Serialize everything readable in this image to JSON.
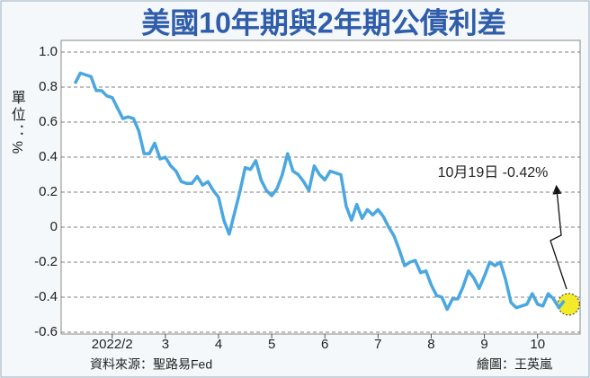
{
  "chart_data": {
    "type": "line",
    "title": "美國10年期與2年期公債利差",
    "y_label": "單位：%",
    "annotation": "10月19日  -0.42%",
    "source": "資料來源：聖路易Fed",
    "credit": "繪圖：王英嵐",
    "x": [
      1.3,
      1.4,
      1.5,
      1.6,
      1.7,
      1.8,
      1.9,
      2.0,
      2.1,
      2.2,
      2.3,
      2.4,
      2.5,
      2.6,
      2.7,
      2.8,
      2.9,
      3.0,
      3.1,
      3.2,
      3.3,
      3.4,
      3.5,
      3.6,
      3.7,
      3.8,
      3.9,
      4.0,
      4.1,
      4.2,
      4.3,
      4.4,
      4.5,
      4.6,
      4.7,
      4.8,
      4.9,
      5.0,
      5.1,
      5.2,
      5.3,
      5.4,
      5.5,
      5.6,
      5.7,
      5.8,
      5.9,
      6.0,
      6.1,
      6.2,
      6.3,
      6.4,
      6.5,
      6.6,
      6.7,
      6.8,
      6.9,
      7.0,
      7.1,
      7.2,
      7.3,
      7.4,
      7.5,
      7.6,
      7.7,
      7.8,
      7.9,
      8.0,
      8.1,
      8.2,
      8.3,
      8.4,
      8.5,
      8.6,
      8.7,
      8.8,
      8.9,
      9.0,
      9.1,
      9.2,
      9.3,
      9.4,
      9.5,
      9.6,
      9.7,
      9.8,
      9.9,
      10.0,
      10.1,
      10.2,
      10.3,
      10.4,
      10.5
    ],
    "series": [
      {
        "color": "#4aa7df",
        "values": [
          0.82,
          0.88,
          0.87,
          0.86,
          0.78,
          0.78,
          0.75,
          0.74,
          0.68,
          0.62,
          0.63,
          0.62,
          0.55,
          0.42,
          0.42,
          0.48,
          0.39,
          0.4,
          0.35,
          0.32,
          0.26,
          0.25,
          0.25,
          0.29,
          0.24,
          0.26,
          0.21,
          0.17,
          0.04,
          -0.04,
          0.08,
          0.2,
          0.34,
          0.33,
          0.38,
          0.27,
          0.21,
          0.18,
          0.22,
          0.3,
          0.42,
          0.32,
          0.3,
          0.26,
          0.21,
          0.35,
          0.3,
          0.27,
          0.32,
          0.31,
          0.3,
          0.12,
          0.04,
          0.13,
          0.05,
          0.1,
          0.07,
          0.1,
          0.06,
          0.0,
          -0.05,
          -0.13,
          -0.22,
          -0.2,
          -0.19,
          -0.26,
          -0.25,
          -0.33,
          -0.39,
          -0.4,
          -0.47,
          -0.41,
          -0.41,
          -0.34,
          -0.25,
          -0.29,
          -0.35,
          -0.28,
          -0.2,
          -0.22,
          -0.2,
          -0.3,
          -0.43,
          -0.46,
          -0.45,
          -0.44,
          -0.38,
          -0.44,
          -0.45,
          -0.38,
          -0.41,
          -0.46,
          -0.42
        ]
      }
    ],
    "xlim": [
      1.04,
      10.8
    ],
    "xticks": [
      {
        "value": 2,
        "label": "2022/2"
      },
      3,
      4,
      5,
      6,
      7,
      8,
      9,
      10
    ],
    "ylim": [
      -0.6,
      1
    ],
    "yticks": [
      {
        "value": 1,
        "label": "1.0"
      },
      0.8,
      0.6,
      0.4,
      0.2,
      0,
      -0.2,
      -0.4,
      -0.6
    ],
    "grid": true
  }
}
